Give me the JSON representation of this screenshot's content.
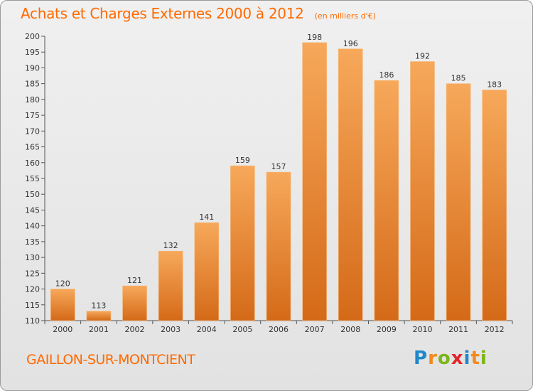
{
  "header": {
    "title": "Achats et Charges Externes 2000 à 2012",
    "subtitle": "(en milliers d'€)"
  },
  "footer": {
    "place": "GAILLON-SUR-MONTCIENT",
    "brand": "Proxiti"
  },
  "colors": {
    "title": "#ff6a00",
    "bar_top": "#f7a85a",
    "bar_bottom": "#d46a18",
    "brand_letters": [
      "#1e88c8",
      "#f28a1e",
      "#7cb518",
      "#e0262b",
      "#1e88c8",
      "#f28a1e",
      "#7cb518"
    ]
  },
  "chart_data": {
    "type": "bar",
    "categories": [
      "2000",
      "2001",
      "2002",
      "2003",
      "2004",
      "2005",
      "2006",
      "2007",
      "2008",
      "2009",
      "2010",
      "2011",
      "2012"
    ],
    "values": [
      120,
      113,
      121,
      132,
      141,
      159,
      157,
      198,
      196,
      186,
      192,
      185,
      183
    ],
    "ylim": [
      110,
      200
    ],
    "yticks": [
      110,
      115,
      120,
      125,
      130,
      135,
      140,
      145,
      150,
      155,
      160,
      165,
      170,
      175,
      180,
      185,
      190,
      195,
      200
    ],
    "grid": false
  }
}
